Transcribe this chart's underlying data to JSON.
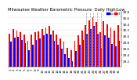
{
  "title": "Milwaukee Weather Barometric Pressure",
  "subtitle": "Daily High/Low",
  "high_color": "#ff0000",
  "low_color": "#0000ff",
  "background_color": "#ffffff",
  "ylim": [
    29.0,
    30.8
  ],
  "ytick_vals": [
    29.2,
    29.4,
    29.6,
    29.8,
    30.0,
    30.2,
    30.4,
    30.6,
    30.8
  ],
  "dates": [
    "1",
    "2",
    "3",
    "4",
    "5",
    "6",
    "7",
    "8",
    "9",
    "10",
    "11",
    "12",
    "13",
    "14",
    "15",
    "16",
    "17",
    "18",
    "19",
    "20",
    "21",
    "22",
    "23",
    "24",
    "25",
    "26",
    "27",
    "28",
    "29",
    "30",
    "31"
  ],
  "highs": [
    30.08,
    30.22,
    30.18,
    30.12,
    30.05,
    29.85,
    30.05,
    30.12,
    30.15,
    30.22,
    30.28,
    30.32,
    30.18,
    30.05,
    29.92,
    29.82,
    29.62,
    29.55,
    29.85,
    30.02,
    30.18,
    30.35,
    30.52,
    30.62,
    30.45,
    30.12,
    30.48,
    30.38,
    30.28,
    30.18,
    30.35
  ],
  "lows": [
    29.82,
    29.95,
    29.98,
    29.88,
    29.78,
    29.55,
    29.72,
    29.88,
    29.92,
    30.02,
    30.08,
    30.05,
    29.85,
    29.72,
    29.58,
    29.42,
    29.28,
    29.18,
    29.52,
    29.72,
    29.88,
    30.08,
    30.22,
    30.32,
    30.08,
    29.62,
    30.02,
    29.95,
    29.75,
    29.68,
    29.85
  ],
  "dashed_indices": [
    21,
    22,
    23,
    24,
    25
  ],
  "legend_blue_label": "Lo",
  "legend_red_label": "Hi",
  "title_fontsize": 3.8,
  "tick_fontsize": 3.0,
  "legend_fontsize": 3.0
}
